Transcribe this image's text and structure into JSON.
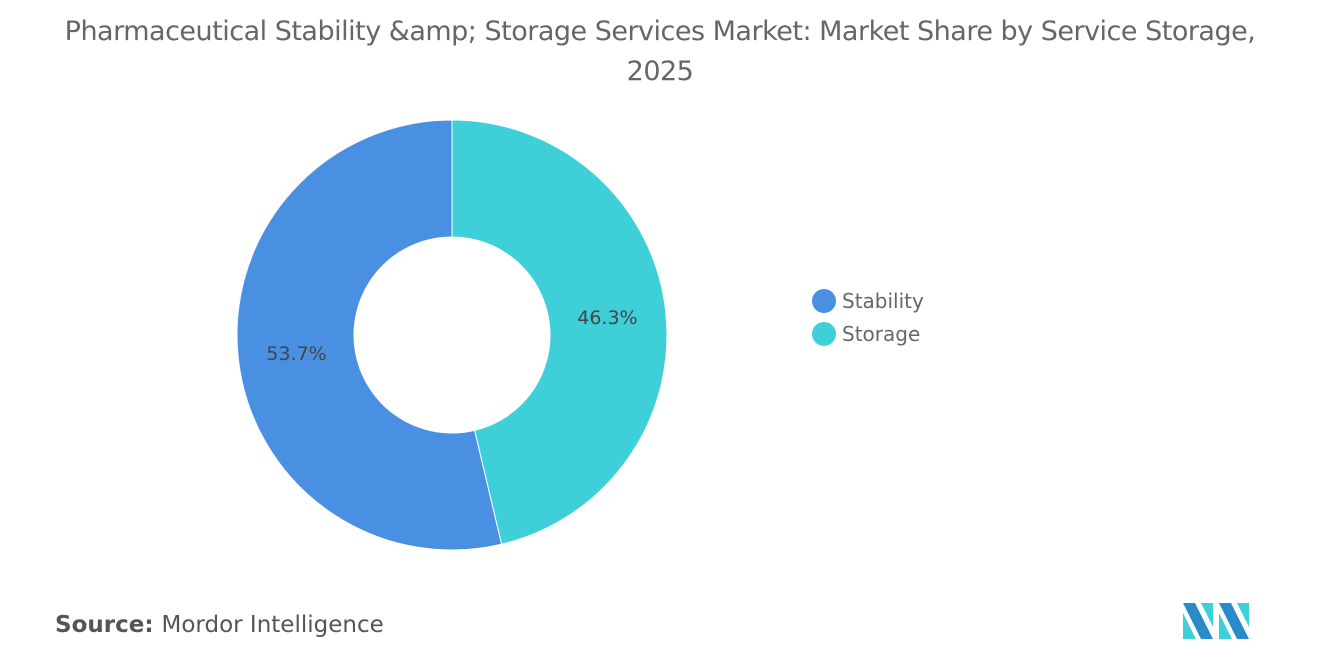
{
  "chart_data": {
    "type": "pie",
    "donut": true,
    "title": "Pharmaceutical Stability &amp; Storage Services Market: Market Share by Service Storage, 2025",
    "categories": [
      "Storage",
      "Stability"
    ],
    "values": [
      46.3,
      53.7
    ],
    "data_labels": [
      "46.3%",
      "53.7%"
    ],
    "colors": [
      "#3ecfd9",
      "#4a90e2"
    ],
    "legend": {
      "placement": "right",
      "entries": [
        "Stability",
        "Storage"
      ],
      "colors": [
        "#4a90e2",
        "#3ecfd9"
      ]
    }
  },
  "source": {
    "label": "Source:",
    "value": "Mordor Intelligence"
  },
  "logo": "mordor-intelligence-logo"
}
